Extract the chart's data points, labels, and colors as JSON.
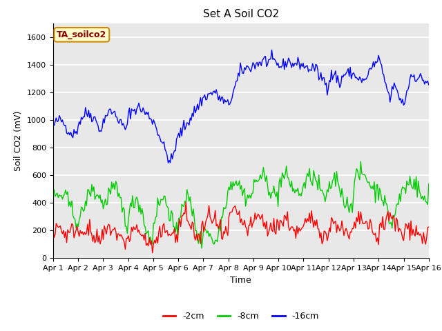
{
  "title": "Set A Soil CO2",
  "xlabel": "Time",
  "ylabel": "Soil CO2 (mV)",
  "ylim": [
    0,
    1700
  ],
  "yticks": [
    0,
    200,
    400,
    600,
    800,
    1000,
    1200,
    1400,
    1600
  ],
  "background_color": "#e8e8e8",
  "legend_labels": [
    "-2cm",
    "-8cm",
    "-16cm"
  ],
  "legend_colors": [
    "#ff0000",
    "#00cc00",
    "#0000ff"
  ],
  "annotation_text": "TA_soilco2",
  "annotation_bg": "#ffffcc",
  "annotation_border": "#cc8800",
  "annotation_text_color": "#8B0000",
  "n_points": 360,
  "x_start": 0,
  "x_end": 15,
  "xtick_positions": [
    0,
    1,
    2,
    3,
    4,
    5,
    6,
    7,
    8,
    9,
    10,
    11,
    12,
    13,
    14,
    15
  ],
  "xtick_labels": [
    "Apr 1",
    "Apr 2",
    "Apr 3",
    "Apr 4",
    "Apr 5",
    "Apr 6",
    "Apr 7",
    "Apr 8",
    "Apr 9",
    "Apr 10",
    "Apr 11",
    "Apr 12",
    "Apr 13",
    "Apr 14",
    "Apr 15",
    "Apr 16"
  ],
  "line_width": 1.0,
  "title_fontsize": 11,
  "axis_label_fontsize": 9,
  "tick_fontsize": 8,
  "legend_fontsize": 9,
  "annotation_fontsize": 9
}
